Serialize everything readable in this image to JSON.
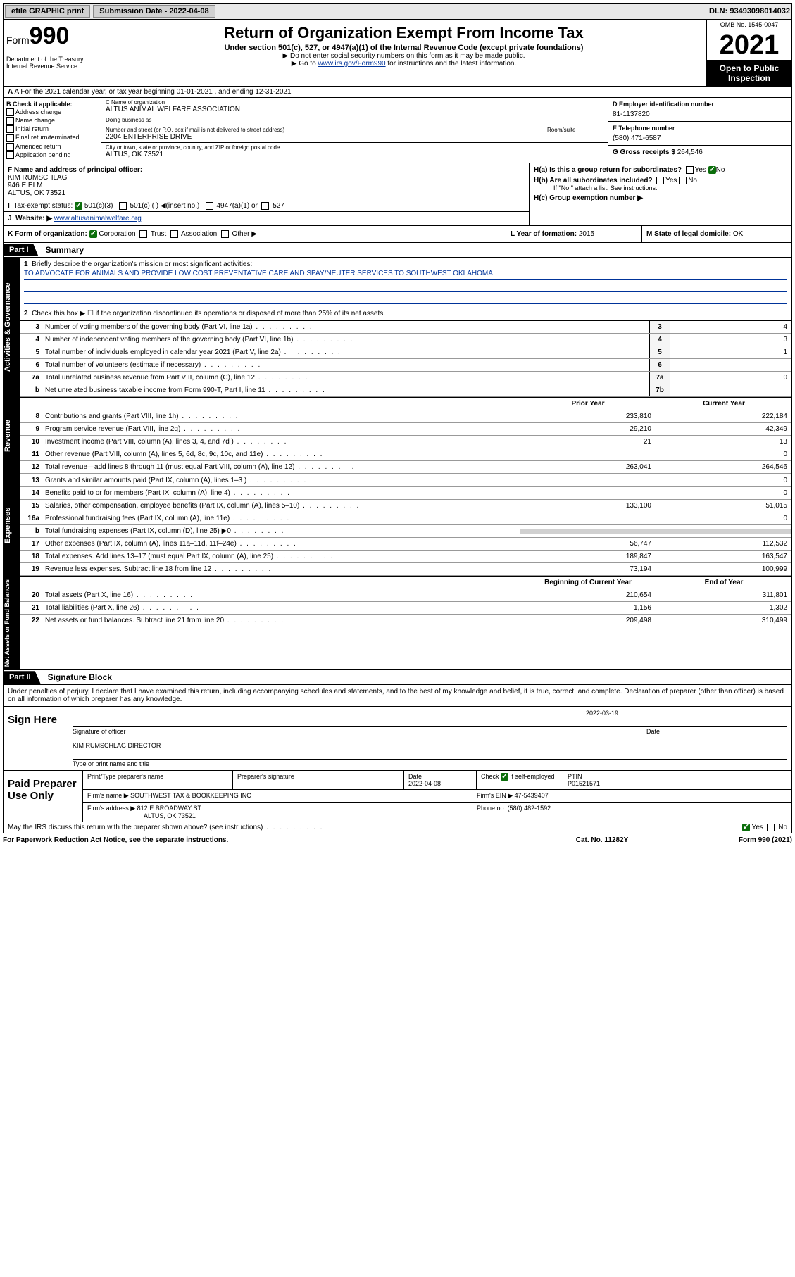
{
  "topbar": {
    "efile": "efile GRAPHIC print",
    "submission_label": "Submission Date - 2022-04-08",
    "dln": "DLN: 93493098014032"
  },
  "header": {
    "form_prefix": "Form",
    "form_num": "990",
    "title": "Return of Organization Exempt From Income Tax",
    "sub1": "Under section 501(c), 527, or 4947(a)(1) of the Internal Revenue Code (except private foundations)",
    "sub2": "▶ Do not enter social security numbers on this form as it may be made public.",
    "sub3_pre": "▶ Go to ",
    "sub3_link": "www.irs.gov/Form990",
    "sub3_post": " for instructions and the latest information.",
    "dept": "Department of the Treasury\nInternal Revenue Service",
    "omb": "OMB No. 1545-0047",
    "year": "2021",
    "open": "Open to Public Inspection"
  },
  "row_a": "A For the 2021 calendar year, or tax year beginning 01-01-2021   , and ending 12-31-2021",
  "col_b": {
    "label": "B Check if applicable:",
    "items": [
      "Address change",
      "Name change",
      "Initial return",
      "Final return/terminated",
      "Amended return",
      "Application pending"
    ]
  },
  "col_c": {
    "name_lbl": "C Name of organization",
    "name": "ALTUS ANIMAL WELFARE ASSOCIATION",
    "dba_lbl": "Doing business as",
    "dba": "",
    "addr_lbl": "Number and street (or P.O. box if mail is not delivered to street address)",
    "addr": "2204 ENTERPRISE DRIVE",
    "room_lbl": "Room/suite",
    "city_lbl": "City or town, state or province, country, and ZIP or foreign postal code",
    "city": "ALTUS, OK  73521"
  },
  "col_d": {
    "ein_lbl": "D Employer identification number",
    "ein": "81-1137820",
    "phone_lbl": "E Telephone number",
    "phone": "(580) 471-6587",
    "gross_lbl": "G Gross receipts $",
    "gross": "264,546"
  },
  "row_f": {
    "f_lbl": "F Name and address of principal officer:",
    "name": "KIM RUMSCHLAG",
    "addr1": "946 E ELM",
    "addr2": "ALTUS, OK  73521",
    "i_lbl": "Tax-exempt status:",
    "i_501c3": "501(c)(3)",
    "i_501c": "501(c) (  ) ◀(insert no.)",
    "i_4947": "4947(a)(1) or",
    "i_527": "527",
    "j_lbl": "Website: ▶",
    "j_val": "www.altusanimalwelfare.org"
  },
  "row_h": {
    "ha_lbl": "H(a)  Is this a group return for subordinates?",
    "hb_lbl": "H(b)  Are all subordinates included?",
    "hb_note": "If \"No,\" attach a list. See instructions.",
    "hc_lbl": "H(c)  Group exemption number ▶"
  },
  "row_k": {
    "k_lbl": "K Form of organization:",
    "k_corp": "Corporation",
    "k_trust": "Trust",
    "k_assoc": "Association",
    "k_other": "Other ▶",
    "l_lbl": "L Year of formation:",
    "l_val": "2015",
    "m_lbl": "M State of legal domicile:",
    "m_val": "OK"
  },
  "part1": {
    "tab": "Part I",
    "title": "Summary"
  },
  "mission": {
    "q1": "Briefly describe the organization's mission or most significant activities:",
    "text": "TO ADVOCATE FOR ANIMALS AND PROVIDE LOW COST PREVENTATIVE CARE AND SPAY/NEUTER SERVICES TO SOUTHWEST OKLAHOMA",
    "q2": "Check this box ▶ ☐  if the organization discontinued its operations or disposed of more than 25% of its net assets."
  },
  "gov_lines": [
    {
      "n": "3",
      "d": "Number of voting members of the governing body (Part VI, line 1a)",
      "box": "3",
      "v": "4"
    },
    {
      "n": "4",
      "d": "Number of independent voting members of the governing body (Part VI, line 1b)",
      "box": "4",
      "v": "3"
    },
    {
      "n": "5",
      "d": "Total number of individuals employed in calendar year 2021 (Part V, line 2a)",
      "box": "5",
      "v": "1"
    },
    {
      "n": "6",
      "d": "Total number of volunteers (estimate if necessary)",
      "box": "6",
      "v": ""
    },
    {
      "n": "7a",
      "d": "Total unrelated business revenue from Part VIII, column (C), line 12",
      "box": "7a",
      "v": "0"
    },
    {
      "n": "b",
      "d": "Net unrelated business taxable income from Form 990-T, Part I, line 11",
      "box": "7b",
      "v": ""
    }
  ],
  "col_hdr": {
    "prior": "Prior Year",
    "curr": "Current Year"
  },
  "revenue": [
    {
      "n": "8",
      "d": "Contributions and grants (Part VIII, line 1h)",
      "p": "233,810",
      "c": "222,184"
    },
    {
      "n": "9",
      "d": "Program service revenue (Part VIII, line 2g)",
      "p": "29,210",
      "c": "42,349"
    },
    {
      "n": "10",
      "d": "Investment income (Part VIII, column (A), lines 3, 4, and 7d )",
      "p": "21",
      "c": "13"
    },
    {
      "n": "11",
      "d": "Other revenue (Part VIII, column (A), lines 5, 6d, 8c, 9c, 10c, and 11e)",
      "p": "",
      "c": "0"
    },
    {
      "n": "12",
      "d": "Total revenue—add lines 8 through 11 (must equal Part VIII, column (A), line 12)",
      "p": "263,041",
      "c": "264,546"
    }
  ],
  "expenses": [
    {
      "n": "13",
      "d": "Grants and similar amounts paid (Part IX, column (A), lines 1–3 )",
      "p": "",
      "c": "0"
    },
    {
      "n": "14",
      "d": "Benefits paid to or for members (Part IX, column (A), line 4)",
      "p": "",
      "c": "0"
    },
    {
      "n": "15",
      "d": "Salaries, other compensation, employee benefits (Part IX, column (A), lines 5–10)",
      "p": "133,100",
      "c": "51,015"
    },
    {
      "n": "16a",
      "d": "Professional fundraising fees (Part IX, column (A), line 11e)",
      "p": "",
      "c": "0"
    },
    {
      "n": "b",
      "d": "Total fundraising expenses (Part IX, column (D), line 25) ▶0",
      "p": "shaded",
      "c": "shaded"
    },
    {
      "n": "17",
      "d": "Other expenses (Part IX, column (A), lines 11a–11d, 11f–24e)",
      "p": "56,747",
      "c": "112,532"
    },
    {
      "n": "18",
      "d": "Total expenses. Add lines 13–17 (must equal Part IX, column (A), line 25)",
      "p": "189,847",
      "c": "163,547"
    },
    {
      "n": "19",
      "d": "Revenue less expenses. Subtract line 18 from line 12",
      "p": "73,194",
      "c": "100,999"
    }
  ],
  "net_hdr": {
    "prior": "Beginning of Current Year",
    "curr": "End of Year"
  },
  "netassets": [
    {
      "n": "20",
      "d": "Total assets (Part X, line 16)",
      "p": "210,654",
      "c": "311,801"
    },
    {
      "n": "21",
      "d": "Total liabilities (Part X, line 26)",
      "p": "1,156",
      "c": "1,302"
    },
    {
      "n": "22",
      "d": "Net assets or fund balances. Subtract line 21 from line 20",
      "p": "209,498",
      "c": "310,499"
    }
  ],
  "vtabs": {
    "gov": "Activities & Governance",
    "rev": "Revenue",
    "exp": "Expenses",
    "net": "Net Assets or Fund Balances"
  },
  "part2": {
    "tab": "Part II",
    "title": "Signature Block",
    "intro": "Under penalties of perjury, I declare that I have examined this return, including accompanying schedules and statements, and to the best of my knowledge and belief, it is true, correct, and complete. Declaration of preparer (other than officer) is based on all information of which preparer has any knowledge."
  },
  "sign": {
    "label": "Sign Here",
    "sig_lbl": "Signature of officer",
    "date_lbl": "Date",
    "date": "2022-03-19",
    "name": "KIM RUMSCHLAG  DIRECTOR",
    "name_lbl": "Type or print name and title"
  },
  "paid": {
    "label": "Paid Preparer Use Only",
    "r1": {
      "c1": "Print/Type preparer's name",
      "c2": "Preparer's signature",
      "c3": "Date",
      "c3v": "2022-04-08",
      "c4": "Check ☑ if self-employed",
      "c5": "PTIN",
      "c5v": "P01521571"
    },
    "r2": {
      "c1": "Firm's name    ▶",
      "c1v": "SOUTHWEST TAX & BOOKKEEPING INC",
      "c2": "Firm's EIN ▶",
      "c2v": "47-5439407"
    },
    "r3": {
      "c1": "Firm's address ▶",
      "c1v": "812 E BROADWAY ST",
      "c1v2": "ALTUS, OK  73521",
      "c2": "Phone no.",
      "c2v": "(580) 482-1592"
    }
  },
  "may_discuss": "May the IRS discuss this return with the preparer shown above? (see instructions)",
  "footer": {
    "left": "For Paperwork Reduction Act Notice, see the separate instructions.",
    "mid": "Cat. No. 11282Y",
    "right": "Form 990 (2021)"
  }
}
